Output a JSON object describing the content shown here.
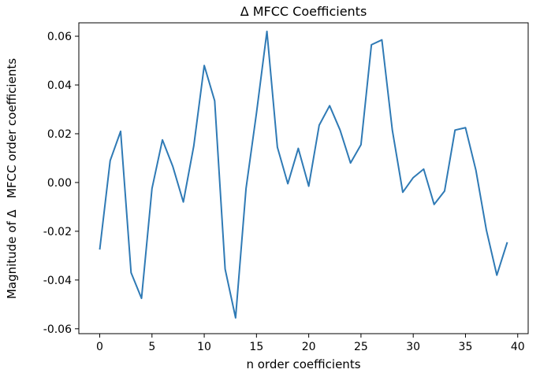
{
  "chart_data": {
    "type": "line",
    "title": "Δ MFCC Coefficients",
    "xlabel": "n order coefficients",
    "ylabel": "Magnitude of Δ   MFCC order coefficients",
    "xlim": [
      -2,
      41
    ],
    "ylim": [
      -0.062,
      0.0655
    ],
    "grid": false,
    "x_ticks": [
      0,
      5,
      10,
      15,
      20,
      25,
      30,
      35,
      40
    ],
    "x_tick_labels": [
      "0",
      "5",
      "10",
      "15",
      "20",
      "25",
      "30",
      "35",
      "40"
    ],
    "y_ticks": [
      -0.06,
      -0.04,
      -0.02,
      0.0,
      0.02,
      0.04,
      0.06
    ],
    "y_tick_labels": [
      "-0.06",
      "-0.04",
      "-0.02",
      "0.00",
      "0.02",
      "0.04",
      "0.06"
    ],
    "series": [
      {
        "color": "#2f7ab5",
        "x": [
          0,
          1,
          2,
          3,
          4,
          5,
          6,
          7,
          8,
          9,
          10,
          11,
          12,
          13,
          14,
          15,
          16,
          17,
          18,
          19,
          20,
          21,
          22,
          23,
          24,
          25,
          26,
          27,
          28,
          29,
          30,
          31,
          32,
          33,
          34,
          35,
          36,
          37,
          38,
          39
        ],
        "values": [
          -0.0275,
          0.009,
          0.021,
          -0.037,
          -0.0475,
          -0.0025,
          0.0175,
          0.0065,
          -0.008,
          0.015,
          0.048,
          0.0335,
          -0.0355,
          -0.0555,
          -0.0025,
          0.0285,
          0.062,
          0.0145,
          -0.0005,
          0.014,
          -0.0015,
          0.0235,
          0.0315,
          0.0215,
          0.008,
          0.0155,
          0.0565,
          0.0585,
          0.0215,
          -0.004,
          0.002,
          0.0055,
          -0.009,
          -0.0035,
          0.0215,
          0.0225,
          0.005,
          -0.0195,
          -0.038,
          -0.0245
        ]
      }
    ]
  }
}
